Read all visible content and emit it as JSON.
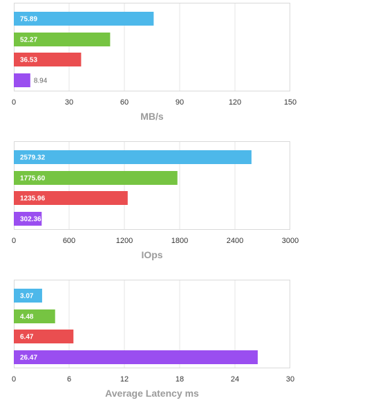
{
  "chart_data": [
    {
      "type": "bar",
      "orientation": "horizontal",
      "xlabel": "MB/s",
      "xlim": [
        0,
        150
      ],
      "ticks": [
        0,
        30,
        60,
        90,
        120,
        150
      ],
      "tick_labels": [
        "0",
        "30",
        "60",
        "90",
        "120",
        "150"
      ],
      "values": [
        75.89,
        52.27,
        36.53,
        8.94
      ],
      "value_labels": [
        "75.89",
        "52.27",
        "36.53",
        "8.94"
      ],
      "grid": true
    },
    {
      "type": "bar",
      "orientation": "horizontal",
      "xlabel": "IOps",
      "xlim": [
        0,
        3000
      ],
      "ticks": [
        0,
        600,
        1200,
        1800,
        2400,
        3000
      ],
      "tick_labels": [
        "0",
        "600",
        "1200",
        "1800",
        "2400",
        "3000"
      ],
      "values": [
        2579.32,
        1775.6,
        1235.96,
        302.36
      ],
      "value_labels": [
        "2579.32",
        "1775.60",
        "1235.96",
        "302.36"
      ],
      "grid": true
    },
    {
      "type": "bar",
      "orientation": "horizontal",
      "xlabel": "Average Latency ms",
      "xlim": [
        0,
        30
      ],
      "ticks": [
        0,
        6,
        12,
        18,
        24,
        30
      ],
      "tick_labels": [
        "0",
        "6",
        "12",
        "18",
        "24",
        "30"
      ],
      "values": [
        3.07,
        4.48,
        6.47,
        26.47
      ],
      "value_labels": [
        "3.07",
        "4.48",
        "6.47",
        "26.47"
      ],
      "grid": true
    }
  ],
  "colors": [
    "#4db8ea",
    "#76c442",
    "#ea4e50",
    "#9a4ef0"
  ],
  "colors_meaning": "bar order top to bottom"
}
